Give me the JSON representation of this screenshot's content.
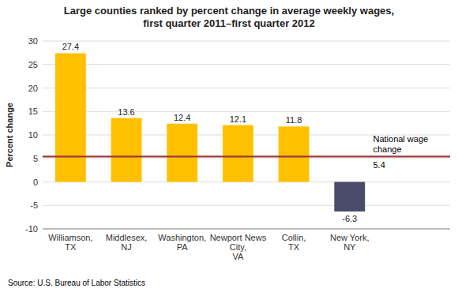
{
  "chart_data": {
    "type": "bar",
    "title": "Large counties ranked by percent change in average weekly wages,\nfirst quarter 2011–first quarter 2012",
    "categories": [
      "Williamson,\nTX",
      "Middlesex,\nNJ",
      "Washington,\nPA",
      "Newport News\nCity,\nVA",
      "Collin,\nTX",
      "New York,\nNY"
    ],
    "values": [
      27.4,
      13.6,
      12.4,
      12.1,
      11.8,
      -6.3
    ],
    "colors": [
      "#FFC000",
      "#FFC000",
      "#FFC000",
      "#FFC000",
      "#FFC000",
      "#4A4A6A"
    ],
    "ylabel": "Percent change",
    "ylim": [
      -10,
      30
    ],
    "yticks": [
      -10,
      -5,
      0,
      5,
      10,
      15,
      20,
      25,
      30
    ],
    "grid": true,
    "data_labels": true,
    "annotations": [
      {
        "type": "hline",
        "value": 5.4,
        "label": "National wage\nchange",
        "color": "#9B3A3A"
      }
    ],
    "source": "Source: U.S. Bureau of Labor Statistics"
  }
}
